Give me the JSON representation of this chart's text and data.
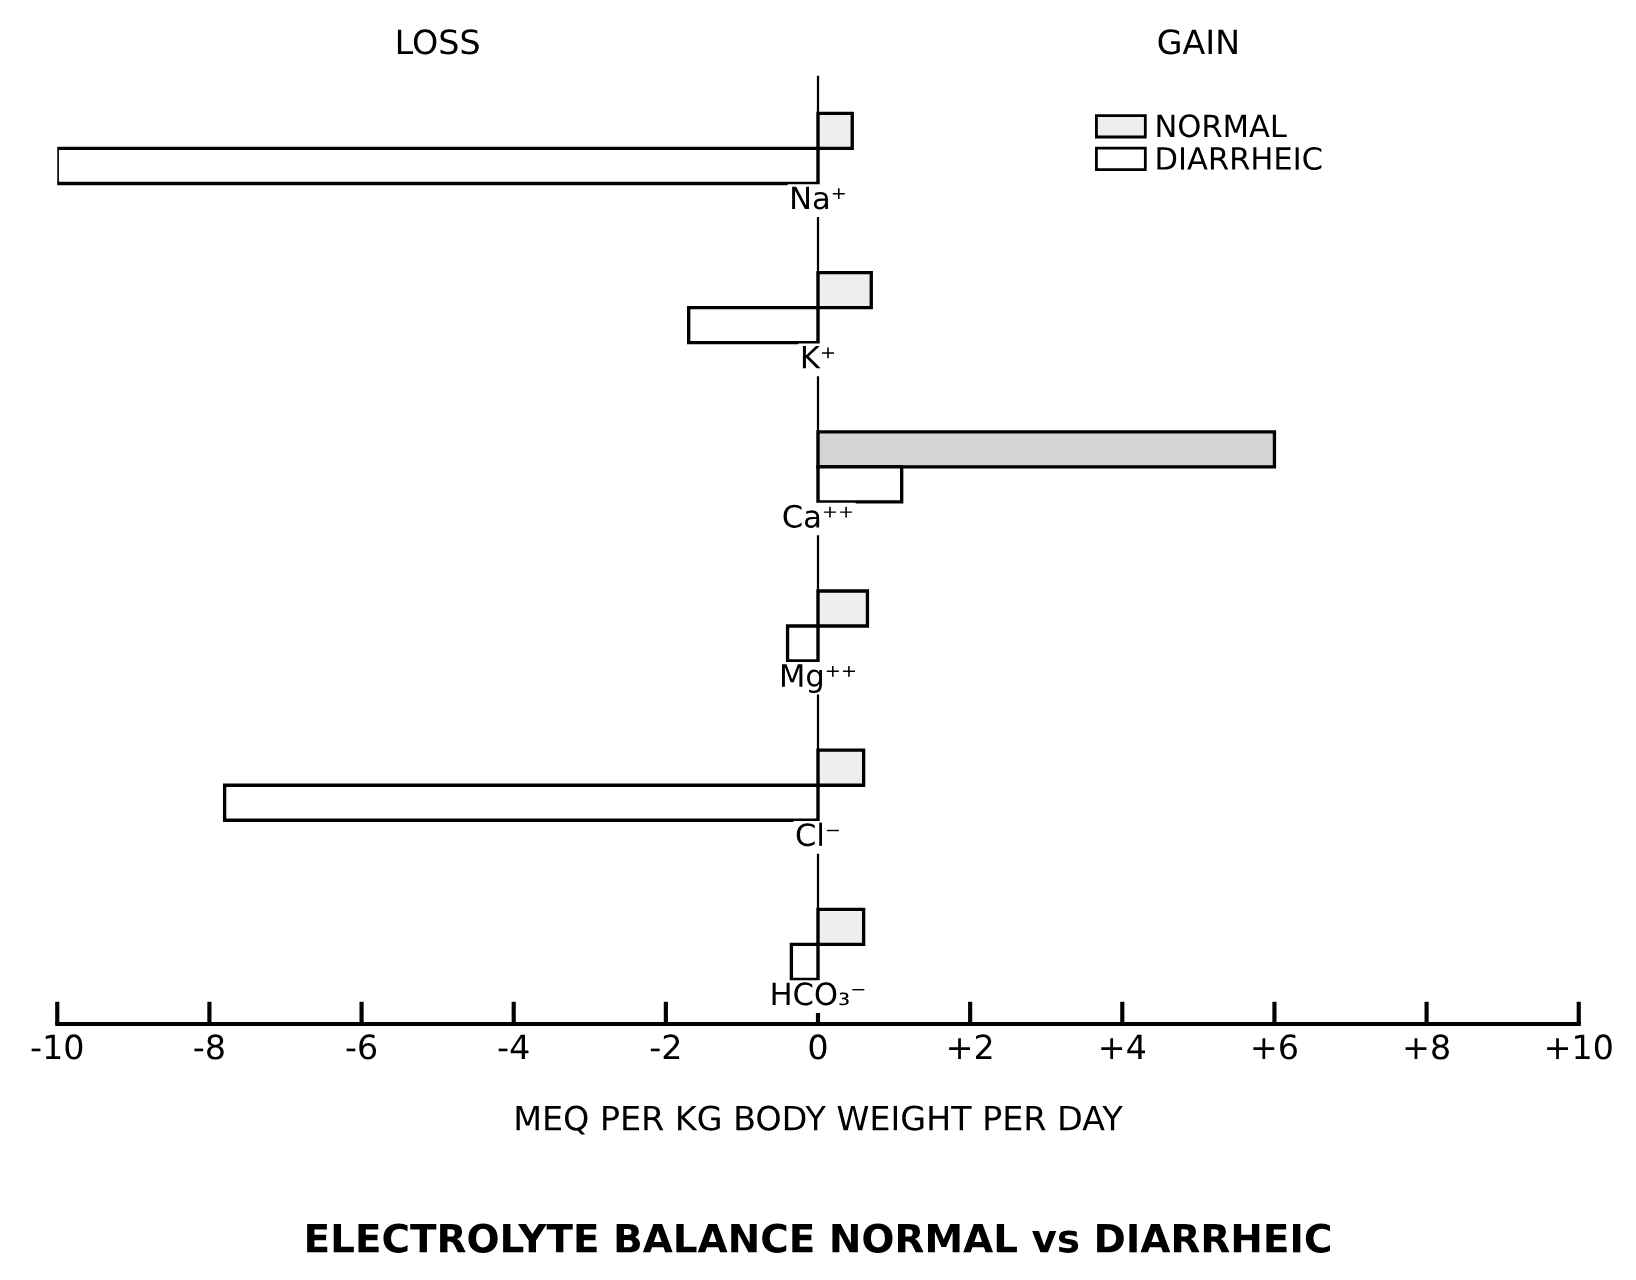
{
  "chart_data": {
    "type": "bar",
    "orientation": "horizontal",
    "title": "ELECTROLYTE BALANCE NORMAL vs DIARRHEIC",
    "xlabel": "MEQ PER KG BODY WEIGHT PER DAY",
    "annotations": [
      "LOSS",
      "GAIN"
    ],
    "categories": [
      "Na⁺",
      "K⁺",
      "Ca⁺⁺",
      "Mg⁺⁺",
      "Cl⁻",
      "HCO₃⁻"
    ],
    "series": [
      {
        "name": "NORMAL",
        "color": "#eeeeee",
        "colors": [
          "#eeeeee",
          "#eeeeee",
          "#d4d4d4",
          "#eeeeee",
          "#eeeeee",
          "#eeeeee"
        ],
        "values": [
          0.45,
          0.7,
          6.0,
          0.65,
          0.6,
          0.6
        ]
      },
      {
        "name": "DIARRHEIC",
        "color": "#ffffff",
        "values": [
          -10,
          -1.7,
          1.1,
          -0.4,
          -7.8,
          -0.35
        ]
      }
    ],
    "xlim": [
      -10,
      10
    ],
    "xticks": [
      -10,
      -8,
      -6,
      -4,
      -2,
      0,
      {
        "value": 2,
        "label": "+2"
      },
      {
        "value": 4,
        "label": "+4"
      },
      {
        "value": 6,
        "label": "+6"
      },
      {
        "value": 8,
        "label": "+8"
      },
      {
        "value": 10,
        "label": "+10"
      }
    ],
    "legend": "top right",
    "grid": false
  }
}
